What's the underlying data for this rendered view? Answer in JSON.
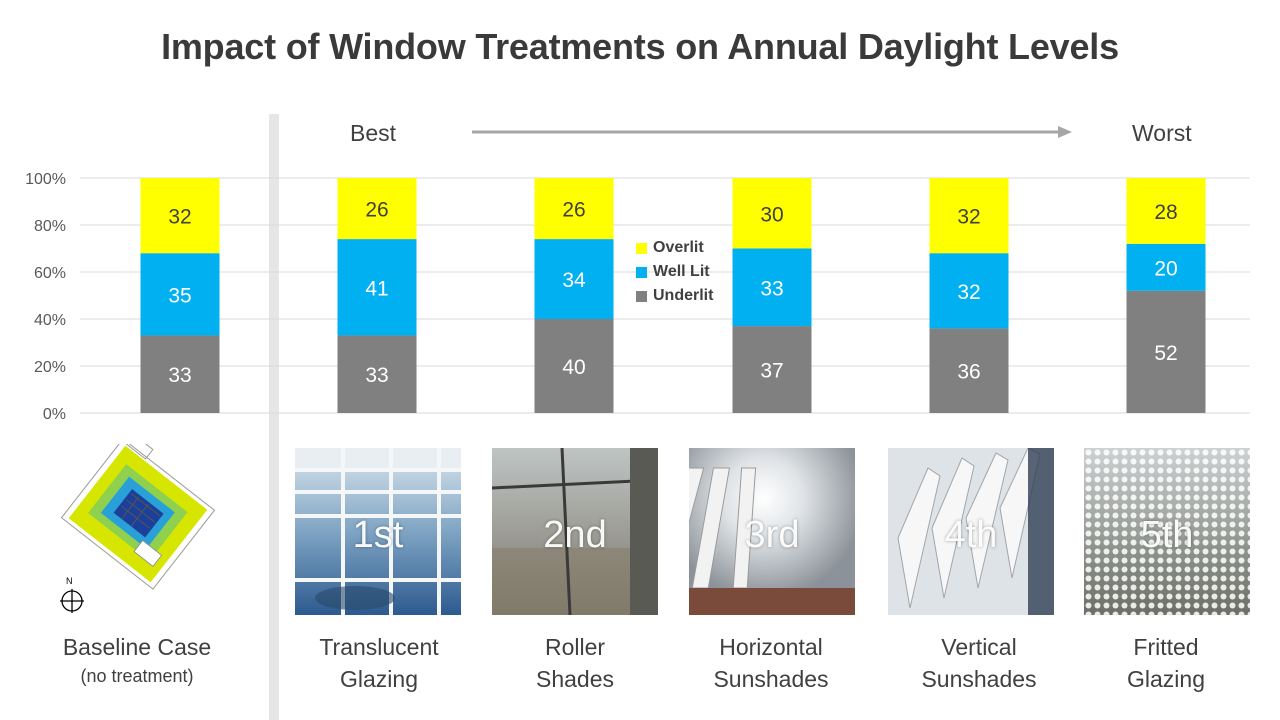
{
  "title": "Impact of Window Treatments on Annual Daylight Levels",
  "best_label": "Best",
  "worst_label": "Worst",
  "colors": {
    "overlit": "#FFFF00",
    "well_lit": "#00B0F0",
    "underlit": "#808080",
    "grid": "#d9d9d9",
    "arrow": "#a6a6a6"
  },
  "chart_data": {
    "type": "bar",
    "stacked": true,
    "categories": [
      "Baseline Case",
      "Translucent Glazing",
      "Roller Shades",
      "Horizontal Sunshades",
      "Vertical Sunshades",
      "Fritted Glazing"
    ],
    "series": [
      {
        "name": "Underlit",
        "values": [
          33,
          33,
          40,
          37,
          36,
          52
        ]
      },
      {
        "name": "Well Lit",
        "values": [
          35,
          41,
          34,
          33,
          32,
          20
        ]
      },
      {
        "name": "Overlit",
        "values": [
          32,
          26,
          26,
          30,
          32,
          28
        ]
      }
    ],
    "ylim": [
      0,
      100
    ],
    "yticks": [
      "0%",
      "20%",
      "40%",
      "60%",
      "80%",
      "100%"
    ],
    "legend": [
      "Overlit",
      "Well Lit",
      "Underlit"
    ],
    "legend_position": "center"
  },
  "treatments": [
    {
      "rank": "1st",
      "line1": "Translucent",
      "line2": "Glazing"
    },
    {
      "rank": "2nd",
      "line1": "Roller",
      "line2": "Shades"
    },
    {
      "rank": "3rd",
      "line1": "Horizontal",
      "line2": "Sunshades"
    },
    {
      "rank": "4th",
      "line1": "Vertical",
      "line2": "Sunshades"
    },
    {
      "rank": "5th",
      "line1": "Fritted",
      "line2": "Glazing"
    }
  ],
  "baseline": {
    "line1": "Baseline Case",
    "line2": "(no treatment)",
    "north_label": "N"
  }
}
